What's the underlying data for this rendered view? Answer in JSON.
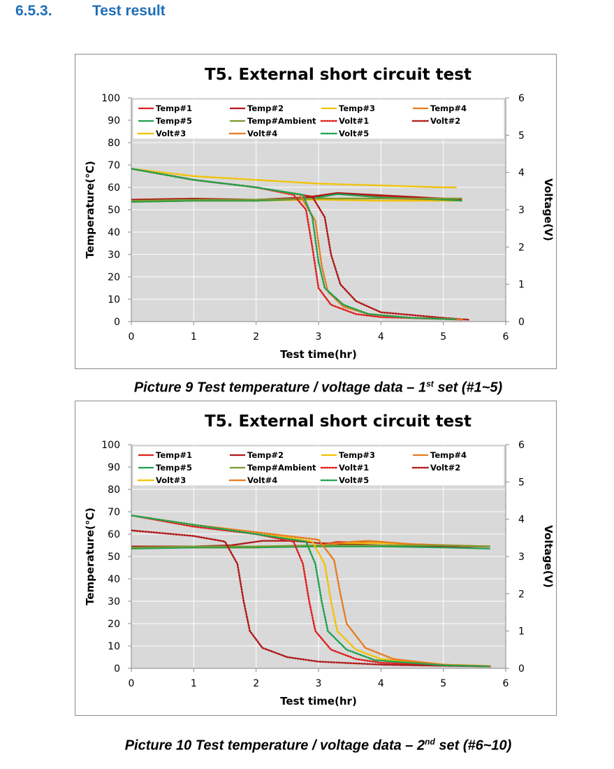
{
  "section": {
    "number": "6.5.3.",
    "title": "Test result"
  },
  "colors": {
    "Temp#1": "#e02020",
    "Temp#2": "#b01818",
    "Temp#3": "#f2c200",
    "Temp#4": "#e87a1e",
    "Temp#5": "#1fa050",
    "Temp#Ambient": "#7a9a30",
    "Volt#1": "#e02020",
    "Volt#2": "#b01818",
    "Volt#3": "#f2c200",
    "Volt#4": "#e87a1e",
    "Volt#5": "#1fa050",
    "plot_background": "#d9d9d9",
    "grid": "#ffffff"
  },
  "captions": [
    {
      "prefix": "Picture 9 Test temperature / voltage data – 1",
      "sup": "st",
      "suffix": " set (#1~5)"
    },
    {
      "prefix": "Picture 10 Test temperature / voltage data – 2",
      "sup": "nd",
      "suffix": " set (#6~10)"
    }
  ],
  "chart_data": [
    {
      "type": "line",
      "title": "T5. External short circuit test",
      "xlabel": "Test time(hr)",
      "ylabel": "Temperature(℃)",
      "y2label": "Voltage(V)",
      "xlim": [
        0,
        6
      ],
      "ylim": [
        0,
        100
      ],
      "y2lim": [
        0,
        6
      ],
      "xticks": [
        0,
        1,
        2,
        3,
        4,
        5,
        6
      ],
      "yticks": [
        0,
        10,
        20,
        30,
        40,
        50,
        60,
        70,
        80,
        90,
        100
      ],
      "y2ticks": [
        0,
        1,
        2,
        3,
        4,
        5,
        6
      ],
      "grid": true,
      "legend_position": "top",
      "series": [
        {
          "name": "Temp#1",
          "axis": "left",
          "style": "solid",
          "x": [
            0,
            1,
            2,
            2.8,
            3.3,
            4,
            5,
            5.3
          ],
          "y": [
            54,
            54.5,
            54,
            55,
            57,
            56,
            55,
            55
          ]
        },
        {
          "name": "Temp#2",
          "axis": "left",
          "style": "solid",
          "x": [
            0,
            1,
            2,
            2.8,
            3.3,
            4,
            5,
            5.3
          ],
          "y": [
            54.5,
            55,
            54.5,
            55.5,
            57.5,
            56.5,
            55,
            54.5
          ]
        },
        {
          "name": "Temp#3",
          "axis": "left",
          "style": "solid",
          "x": [
            0,
            1,
            2,
            3,
            4,
            5,
            5.3
          ],
          "y": [
            54,
            54,
            54,
            54.5,
            54,
            54,
            54
          ]
        },
        {
          "name": "Temp#4",
          "axis": "left",
          "style": "solid",
          "x": [
            0,
            1,
            2,
            3,
            4,
            5,
            5.3
          ],
          "y": [
            53.5,
            54,
            54,
            55,
            55,
            54.5,
            54
          ]
        },
        {
          "name": "Temp#5",
          "axis": "left",
          "style": "solid",
          "x": [
            0,
            1,
            2,
            2.9,
            3.3,
            4,
            5,
            5.3
          ],
          "y": [
            53.5,
            54,
            54,
            55,
            57,
            55.5,
            54.5,
            54
          ]
        },
        {
          "name": "Temp#Ambient",
          "axis": "left",
          "style": "solid",
          "x": [
            0,
            1,
            2,
            3,
            4,
            5,
            5.3
          ],
          "y": [
            54,
            54.5,
            54.5,
            55,
            55,
            55,
            55
          ]
        },
        {
          "name": "Volt#1",
          "axis": "right",
          "style": "dotted",
          "x": [
            0,
            1,
            2,
            2.6,
            2.8,
            2.9,
            3.0,
            3.2,
            3.6,
            4,
            5,
            5.3
          ],
          "y": [
            4.1,
            3.8,
            3.6,
            3.4,
            3.0,
            2.0,
            0.9,
            0.45,
            0.2,
            0.12,
            0.07,
            0.05
          ]
        },
        {
          "name": "Volt#2",
          "axis": "right",
          "style": "dotted",
          "x": [
            0,
            1,
            2,
            2.9,
            3.1,
            3.2,
            3.35,
            3.6,
            4,
            5,
            5.4
          ],
          "y": [
            4.1,
            3.8,
            3.6,
            3.35,
            2.8,
            1.8,
            1.0,
            0.55,
            0.25,
            0.1,
            0.05
          ]
        },
        {
          "name": "Volt#3",
          "axis": "right",
          "style": "dotted",
          "x": [
            0,
            1,
            2,
            3,
            4,
            5,
            5.2
          ],
          "y": [
            4.1,
            3.9,
            3.8,
            3.7,
            3.65,
            3.6,
            3.6
          ]
        },
        {
          "name": "Volt#4",
          "axis": "right",
          "style": "dotted",
          "x": [
            0,
            1,
            2,
            2.7,
            2.95,
            3.05,
            3.15,
            3.4,
            3.8,
            4.5,
            5.3
          ],
          "y": [
            4.1,
            3.8,
            3.6,
            3.4,
            2.7,
            1.5,
            0.8,
            0.4,
            0.2,
            0.1,
            0.06
          ]
        },
        {
          "name": "Volt#5",
          "axis": "right",
          "style": "dotted",
          "x": [
            0,
            1,
            2,
            2.75,
            2.9,
            3.0,
            3.1,
            3.4,
            3.8,
            4.5,
            5.2
          ],
          "y": [
            4.1,
            3.8,
            3.6,
            3.4,
            2.8,
            1.6,
            0.9,
            0.45,
            0.2,
            0.1,
            0.06
          ]
        }
      ]
    },
    {
      "type": "line",
      "title": "T5. External short circuit test",
      "xlabel": "Test time(hr)",
      "ylabel": "Temperature(℃)",
      "y2label": "Voltage(V)",
      "xlim": [
        0,
        6
      ],
      "ylim": [
        0,
        100
      ],
      "y2lim": [
        0,
        6
      ],
      "xticks": [
        0,
        1,
        2,
        3,
        4,
        5,
        6
      ],
      "yticks": [
        0,
        10,
        20,
        30,
        40,
        50,
        60,
        70,
        80,
        90,
        100
      ],
      "y2ticks": [
        0,
        1,
        2,
        3,
        4,
        5,
        6
      ],
      "grid": true,
      "legend_position": "top",
      "series": [
        {
          "name": "Temp#1",
          "axis": "left",
          "style": "solid",
          "x": [
            0,
            1,
            2,
            3,
            3.3,
            4,
            5,
            5.75
          ],
          "y": [
            54,
            54,
            54,
            55,
            56.5,
            56,
            55,
            54.5
          ]
        },
        {
          "name": "Temp#2",
          "axis": "left",
          "style": "solid",
          "x": [
            0,
            1,
            1.6,
            2.1,
            2.6,
            3,
            4,
            5,
            5.75
          ],
          "y": [
            54.5,
            54.5,
            55,
            57,
            57,
            56,
            55,
            54.5,
            54.5
          ]
        },
        {
          "name": "Temp#3",
          "axis": "left",
          "style": "solid",
          "x": [
            0,
            1,
            2,
            3,
            3.3,
            4,
            5,
            5.75
          ],
          "y": [
            54,
            54,
            54,
            55,
            56,
            56,
            55,
            54.5
          ]
        },
        {
          "name": "Temp#4",
          "axis": "left",
          "style": "solid",
          "x": [
            0,
            1,
            2,
            3,
            3.5,
            3.8,
            4.5,
            5.75
          ],
          "y": [
            54,
            54,
            54,
            55,
            56.5,
            57,
            55.5,
            54.5
          ]
        },
        {
          "name": "Temp#5",
          "axis": "left",
          "style": "solid",
          "x": [
            0,
            1,
            2,
            3,
            4,
            5,
            5.75
          ],
          "y": [
            53.5,
            54,
            54,
            54.5,
            54.5,
            54,
            53.5
          ]
        },
        {
          "name": "Temp#Ambient",
          "axis": "left",
          "style": "solid",
          "x": [
            0,
            1,
            2,
            3,
            4,
            5,
            5.75
          ],
          "y": [
            54,
            54.5,
            54.5,
            55,
            55,
            55,
            54.5
          ]
        },
        {
          "name": "Volt#1",
          "axis": "right",
          "style": "dotted",
          "x": [
            0,
            1,
            2,
            2.6,
            2.75,
            2.85,
            2.95,
            3.2,
            3.6,
            4,
            5,
            5.75
          ],
          "y": [
            4.1,
            3.8,
            3.6,
            3.4,
            2.8,
            1.8,
            1.0,
            0.5,
            0.25,
            0.15,
            0.08,
            0.05
          ]
        },
        {
          "name": "Volt#2",
          "axis": "right",
          "style": "dotted",
          "x": [
            0,
            1,
            1.5,
            1.7,
            1.8,
            1.9,
            2.1,
            2.5,
            3,
            4,
            5,
            5.75
          ],
          "y": [
            3.7,
            3.55,
            3.4,
            2.8,
            1.8,
            1.0,
            0.55,
            0.3,
            0.18,
            0.1,
            0.07,
            0.05
          ]
        },
        {
          "name": "Volt#3",
          "axis": "right",
          "style": "dotted",
          "x": [
            0,
            1,
            2,
            2.9,
            3.1,
            3.2,
            3.3,
            3.6,
            4,
            5,
            5.75
          ],
          "y": [
            4.1,
            3.85,
            3.65,
            3.4,
            2.8,
            1.8,
            1.0,
            0.5,
            0.25,
            0.1,
            0.06
          ]
        },
        {
          "name": "Volt#4",
          "axis": "right",
          "style": "dotted",
          "x": [
            0,
            1,
            2,
            3,
            3.25,
            3.35,
            3.45,
            3.75,
            4.2,
            5,
            5.75
          ],
          "y": [
            4.1,
            3.85,
            3.65,
            3.45,
            2.9,
            2.0,
            1.2,
            0.55,
            0.25,
            0.1,
            0.06
          ]
        },
        {
          "name": "Volt#5",
          "axis": "right",
          "style": "dotted",
          "x": [
            0,
            1,
            2,
            2.8,
            2.95,
            3.05,
            3.15,
            3.45,
            3.9,
            5,
            5.75
          ],
          "y": [
            4.1,
            3.85,
            3.6,
            3.4,
            2.8,
            1.8,
            1.0,
            0.5,
            0.22,
            0.08,
            0.05
          ]
        }
      ]
    }
  ]
}
